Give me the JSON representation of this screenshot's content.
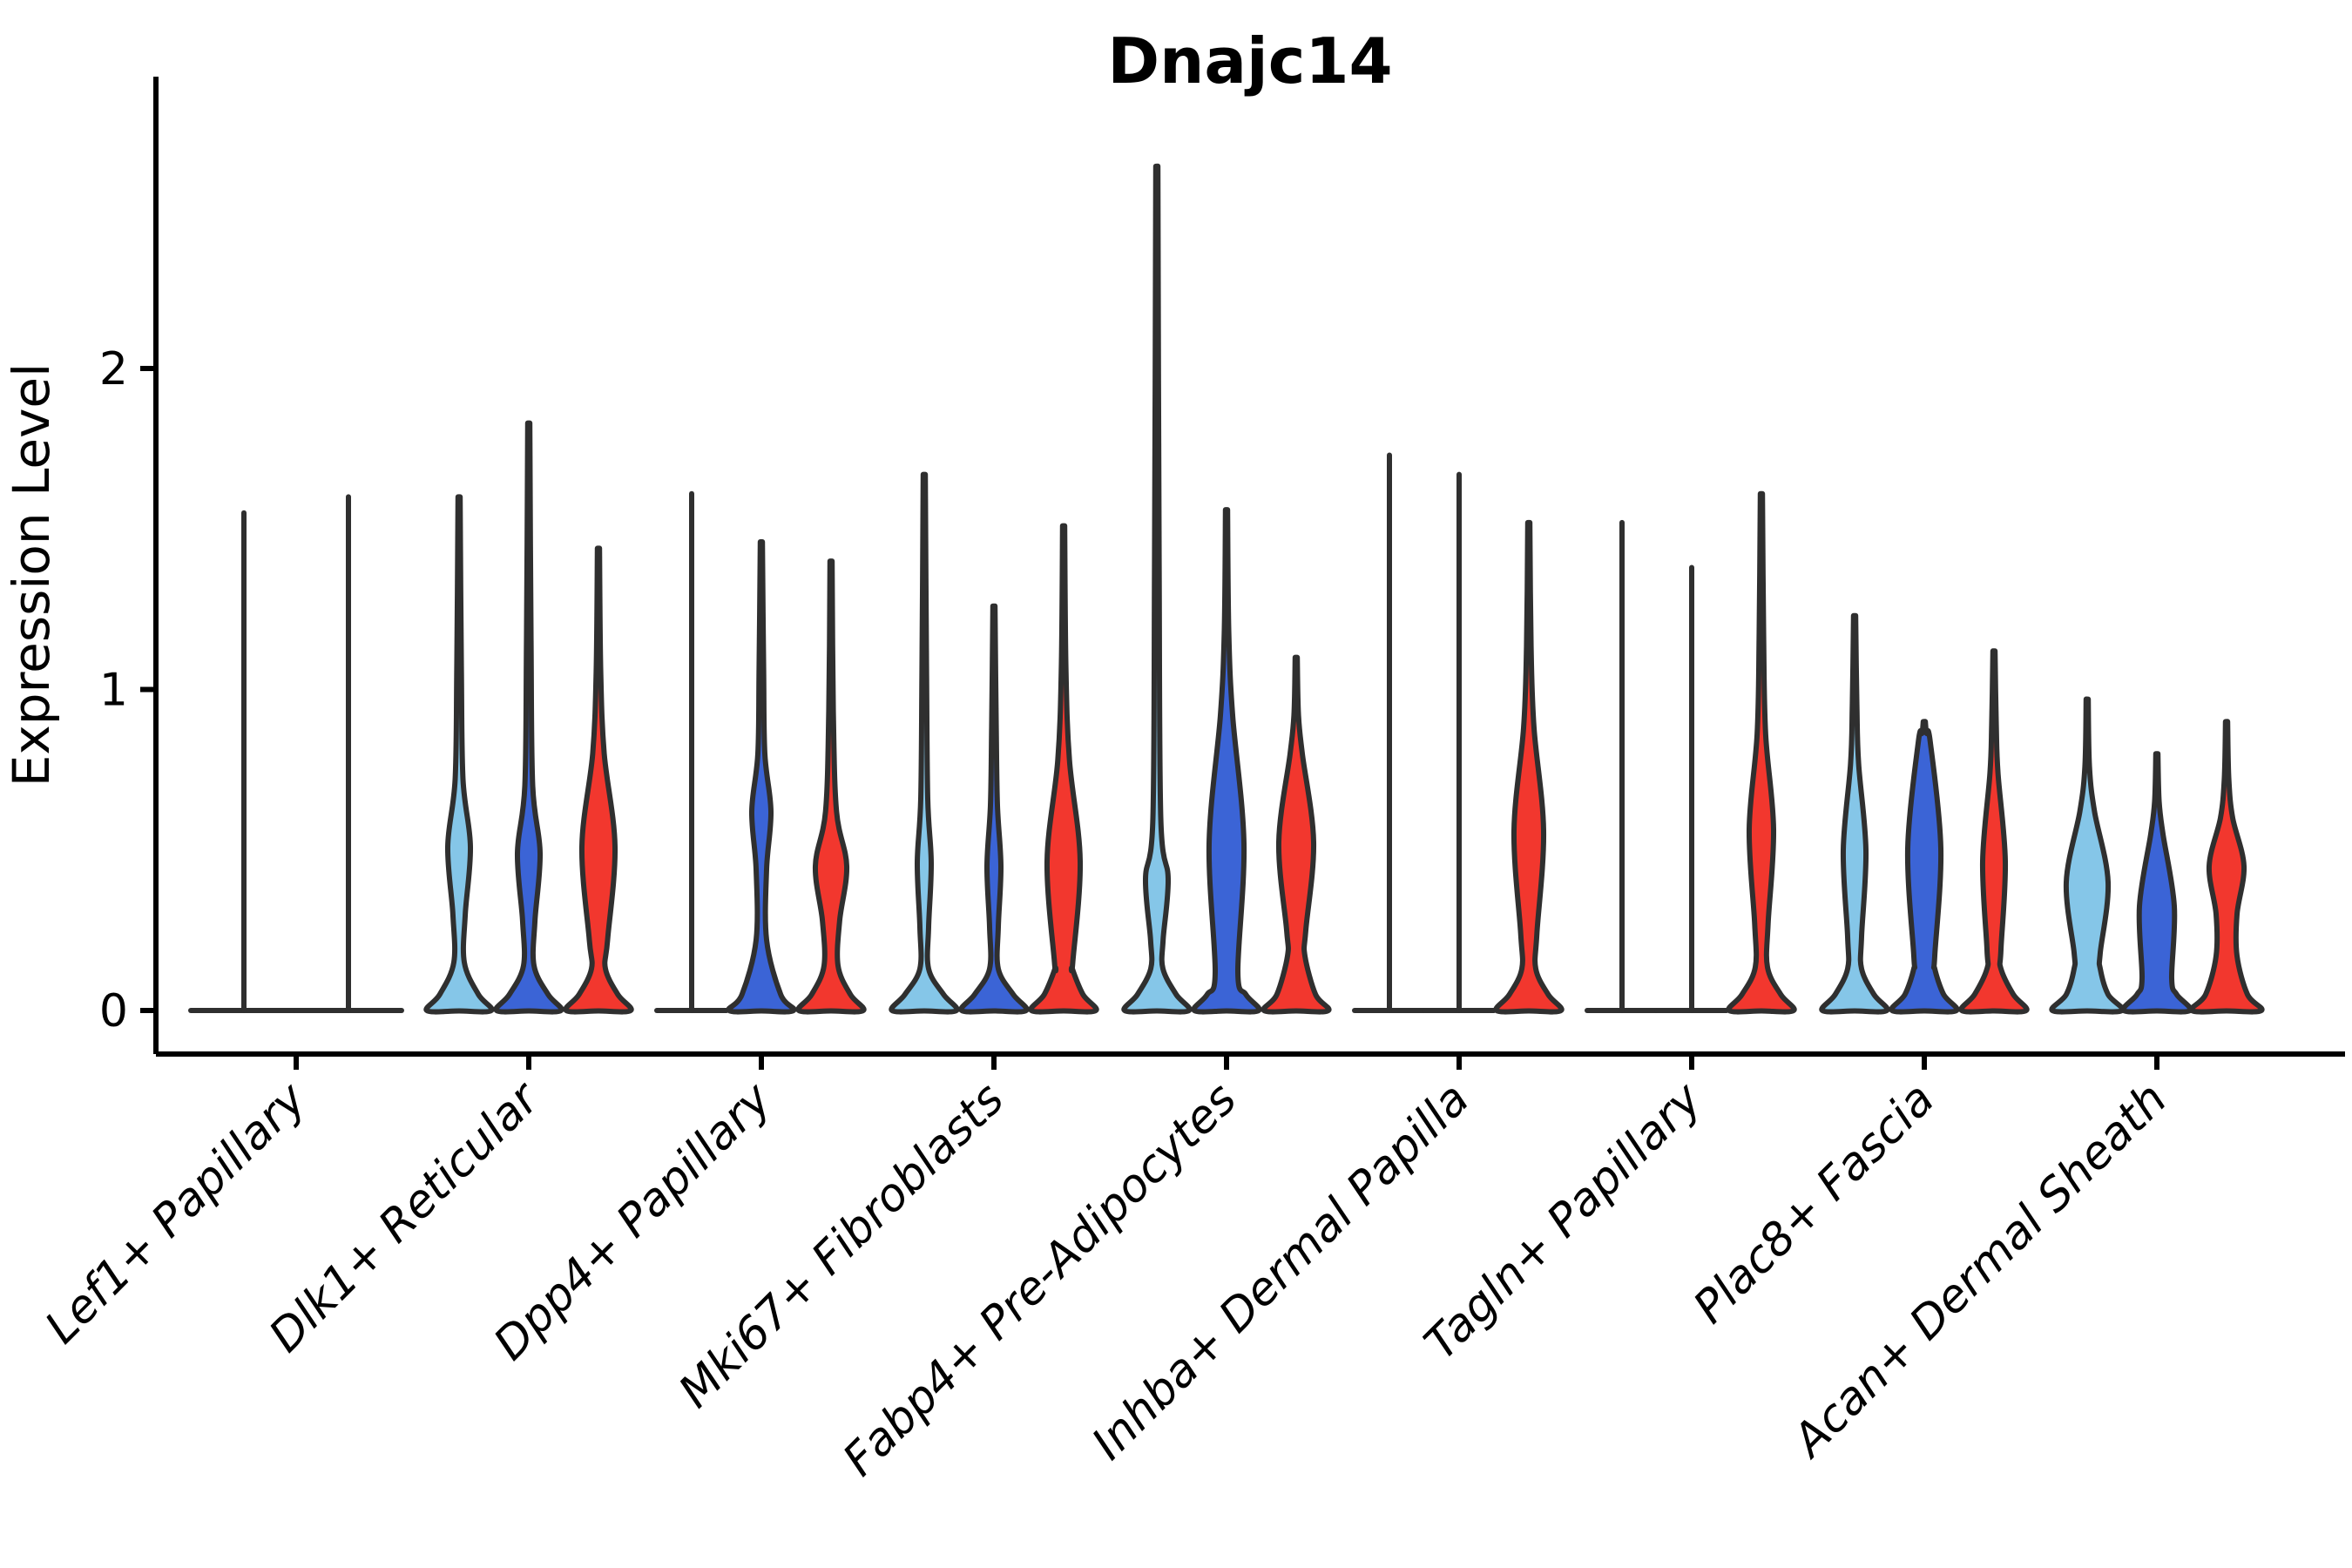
{
  "chart_data": {
    "type": "violin",
    "title": "Dnajc14",
    "ylabel": "Expression Level",
    "xlabel": "",
    "yticks": [
      0,
      1,
      2
    ],
    "ylim": [
      0,
      2.75
    ],
    "grid": false,
    "legend": "none",
    "x_label_rotation_deg": 45,
    "split_colors": {
      "light_blue": "#85C6E8",
      "dark_blue": "#3B64D6",
      "red": "#F2372E"
    },
    "outline_color": "#2F2F2F",
    "axis_color": "#000000",
    "categories": [
      "Lef1+ Papillary",
      "Dlk1+ Reticular",
      "Dpp4+ Papillary",
      "Mki67+ Fibroblasts",
      "Fabp4+ Pre-Adipocytes",
      "Inhba+ Dermal Papilla",
      "Tagln+ Papillary",
      "Plac8+ Fascia",
      "Acan+ Dermal Sheath"
    ],
    "groups": [
      {
        "category": "Lef1+ Papillary",
        "violins": [
          {
            "split": "unknown",
            "style": "spike",
            "max": 1.55,
            "dx": -60,
            "base_w": 61
          },
          {
            "split": "unknown",
            "style": "spike",
            "max": 1.6,
            "dx": 60,
            "base_w": 61
          }
        ]
      },
      {
        "category": "Dlk1+ Reticular",
        "violins": [
          {
            "split": "light_blue",
            "style": "violin",
            "max": 1.6,
            "lens": [
              0.3,
              0.72
            ],
            "lens_w": 13,
            "neck_w": 6,
            "dx": -80
          },
          {
            "split": "dark_blue",
            "style": "violin",
            "max": 1.83,
            "lens": [
              0.28,
              0.7
            ],
            "lens_w": 13,
            "neck_w": 6,
            "dx": 0
          },
          {
            "split": "red",
            "style": "violin",
            "max": 1.44,
            "lens": [
              0.22,
              0.8
            ],
            "lens_w": 19,
            "neck_w": 8,
            "dx": 80
          }
        ]
      },
      {
        "category": "Dpp4+ Papillary",
        "violins": [
          {
            "split": "light_blue",
            "style": "spike",
            "max": 1.61,
            "dx": -80,
            "base_w": 40
          },
          {
            "split": "dark_blue",
            "style": "violin",
            "max": 1.46,
            "lens": [
              0.44,
              0.8
            ],
            "lens_w": 11,
            "neck_w": 6,
            "dx": 0
          },
          {
            "split": "red",
            "style": "violin",
            "max": 1.4,
            "lens": [
              0.28,
              0.62
            ],
            "lens_w": 18,
            "neck_w": 8,
            "dx": 80
          }
        ]
      },
      {
        "category": "Mki67+ Fibroblasts",
        "violins": [
          {
            "split": "light_blue",
            "style": "violin",
            "max": 1.67,
            "lens": [
              0.26,
              0.66
            ],
            "lens_w": 8,
            "neck_w": 5,
            "dx": -80
          },
          {
            "split": "dark_blue",
            "style": "violin",
            "max": 1.26,
            "lens": [
              0.26,
              0.64
            ],
            "lens_w": 8,
            "neck_w": 5,
            "dx": 0
          },
          {
            "split": "red",
            "style": "violin",
            "max": 1.51,
            "lens": [
              0.15,
              0.78
            ],
            "lens_w": 19,
            "neck_w": 10,
            "dx": 80
          }
        ]
      },
      {
        "category": "Fabp4+ Pre-Adipocytes",
        "violins": [
          {
            "split": "light_blue",
            "style": "violin",
            "max": 2.63,
            "lens": [
              0.22,
              0.6
            ],
            "lens_w": 13,
            "neck_w": 7,
            "dx": -80
          },
          {
            "split": "dark_blue",
            "style": "violin",
            "max": 1.56,
            "lens": [
              0.12,
              0.92
            ],
            "lens_w": 20,
            "neck_w": 13,
            "dx": 0
          },
          {
            "split": "red",
            "style": "violin",
            "max": 1.1,
            "lens": [
              0.25,
              0.8
            ],
            "lens_w": 20,
            "neck_w": 9,
            "waist": [
              0.17,
              10
            ],
            "dx": 80
          }
        ]
      },
      {
        "category": "Inhba+ Dermal Papilla",
        "violins": [
          {
            "split": "light_blue",
            "style": "spike",
            "max": 1.73,
            "dx": -80,
            "base_w": 40
          },
          {
            "split": "dark_blue",
            "style": "spike",
            "max": 1.67,
            "dx": 0,
            "base_w": 40
          },
          {
            "split": "red",
            "style": "violin",
            "max": 1.52,
            "lens": [
              0.24,
              0.88
            ],
            "lens_w": 17,
            "neck_w": 8,
            "dx": 80
          }
        ]
      },
      {
        "category": "Tagln+ Papillary",
        "violins": [
          {
            "split": "light_blue",
            "style": "spike",
            "max": 1.52,
            "dx": -80,
            "base_w": 40
          },
          {
            "split": "dark_blue",
            "style": "spike",
            "max": 1.38,
            "dx": 0,
            "base_w": 40
          },
          {
            "split": "red",
            "style": "violin",
            "max": 1.61,
            "lens": [
              0.27,
              0.86
            ],
            "lens_w": 14,
            "neck_w": 7,
            "dx": 80
          }
        ]
      },
      {
        "category": "Plac8+ Fascia",
        "violins": [
          {
            "split": "light_blue",
            "style": "violin",
            "max": 1.23,
            "lens": [
              0.23,
              0.77
            ],
            "lens_w": 13,
            "neck_w": 8,
            "dx": -80
          },
          {
            "split": "dark_blue",
            "style": "violin",
            "max": 0.9,
            "lens": [
              0.17,
              0.84
            ],
            "lens_w": 19,
            "neck_w": 12,
            "dx": 0
          },
          {
            "split": "red",
            "style": "violin",
            "max": 1.12,
            "lens": [
              0.19,
              0.74
            ],
            "lens_w": 13,
            "neck_w": 8,
            "dx": 80
          }
        ]
      },
      {
        "category": "Acan+ Dermal Sheath",
        "violins": [
          {
            "split": "light_blue",
            "style": "violin",
            "max": 0.97,
            "lens": [
              0.18,
              0.62
            ],
            "lens_w": 24,
            "neck_w": 15,
            "base_w": 40,
            "dx": -80
          },
          {
            "split": "dark_blue",
            "style": "violin",
            "max": 0.8,
            "lens": [
              0.1,
              0.55
            ],
            "lens_w": 20,
            "neck_w": 17,
            "base_w": 38,
            "dx": 0
          },
          {
            "split": "red",
            "style": "violin",
            "max": 0.9,
            "lens": [
              0.3,
              0.6
            ],
            "lens_w": 20,
            "neck_w": 12,
            "waist": [
              0.17,
              12
            ],
            "base_w": 40,
            "dx": 80
          }
        ]
      }
    ]
  }
}
